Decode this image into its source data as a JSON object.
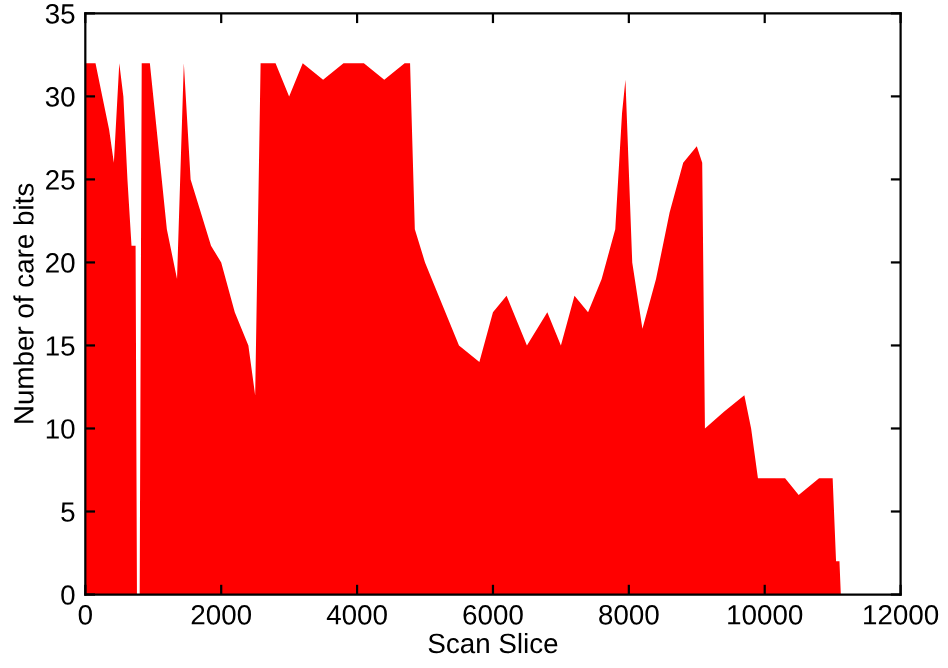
{
  "chart_data": {
    "type": "area",
    "xlabel": "Scan Slice",
    "ylabel": "Number of care bits",
    "x": [
      0,
      150,
      250,
      350,
      420,
      500,
      560,
      620,
      680,
      740,
      760,
      800,
      830,
      950,
      1050,
      1200,
      1350,
      1450,
      1550,
      1700,
      1850,
      2000,
      2200,
      2400,
      2500,
      2580,
      2800,
      3000,
      3200,
      3500,
      3800,
      4100,
      4400,
      4700,
      4780,
      4850,
      5000,
      5200,
      5500,
      5800,
      6000,
      6200,
      6500,
      6800,
      7000,
      7200,
      7400,
      7600,
      7800,
      7900,
      7950,
      8050,
      8200,
      8400,
      8600,
      8800,
      9000,
      9080,
      9120,
      9400,
      9700,
      9800,
      9900,
      10000,
      10300,
      10500,
      10800,
      11000,
      11050,
      11100,
      11120
    ],
    "series": [
      {
        "color": "#ff0000",
        "values": [
          32,
          32,
          30,
          28,
          26,
          32,
          30,
          25,
          21,
          21,
          0,
          0,
          32,
          32,
          28,
          22,
          19,
          32,
          25,
          23,
          21,
          20,
          17,
          15,
          12,
          32,
          32,
          30,
          32,
          31,
          32,
          32,
          31,
          32,
          32,
          22,
          20,
          18,
          15,
          14,
          17,
          18,
          15,
          17,
          15,
          18,
          17,
          19,
          22,
          29,
          31,
          20,
          16,
          19,
          23,
          26,
          27,
          26,
          10,
          11,
          12,
          10,
          7,
          7,
          7,
          6,
          7,
          7,
          2,
          2,
          0
        ]
      }
    ],
    "xlim": [
      0,
      12000
    ],
    "xticks": [
      0,
      2000,
      4000,
      6000,
      8000,
      10000,
      12000
    ],
    "ylim": [
      0,
      35
    ],
    "yticks": [
      0,
      5,
      10,
      15,
      20,
      25,
      30,
      35
    ],
    "grid": false,
    "legend": false
  }
}
